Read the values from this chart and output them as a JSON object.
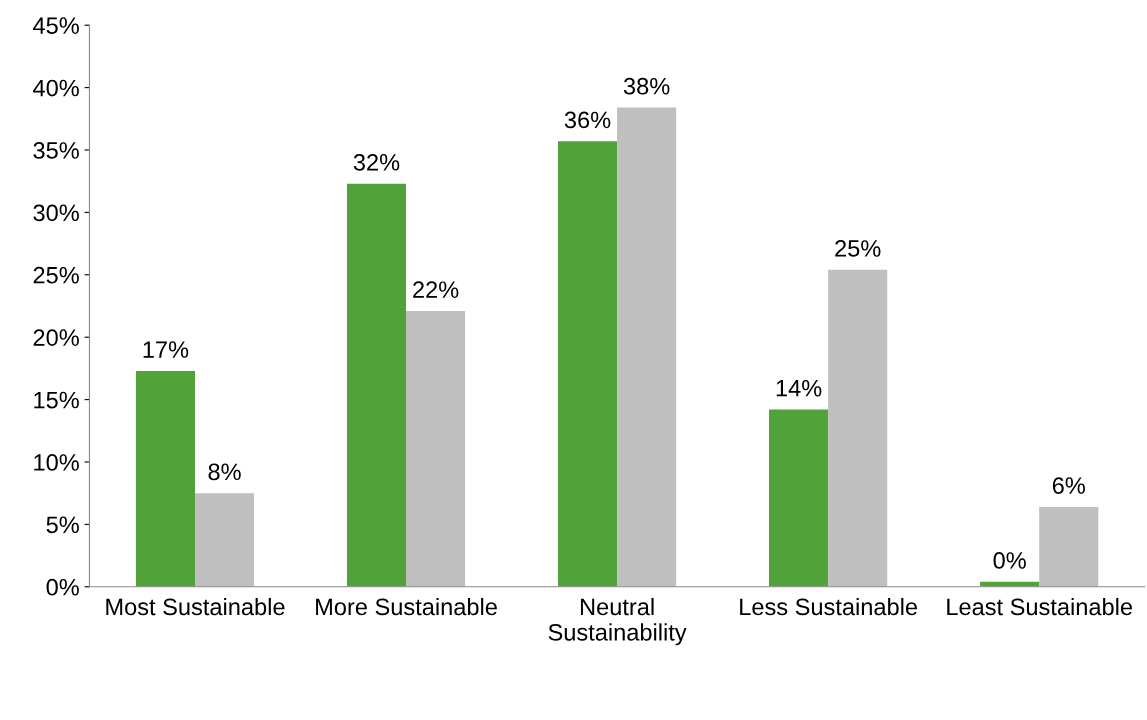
{
  "chart_data": {
    "type": "bar",
    "categories": [
      "Most Sustainable",
      "More Sustainable",
      "Neutral\nSustainability",
      "Less Sustainable",
      "Least Sustainable"
    ],
    "series": [
      {
        "color": "#52a23a",
        "values": [
          17.3,
          32.3,
          35.7,
          14.2,
          0.4
        ],
        "value_labels": [
          "17%",
          "32%",
          "36%",
          "14%",
          "0%"
        ]
      },
      {
        "color": "#bfbfbf",
        "values": [
          7.5,
          22.1,
          38.4,
          25.4,
          6.4
        ],
        "value_labels": [
          "8%",
          "22%",
          "38%",
          "25%",
          "6%"
        ]
      }
    ],
    "ylim": [
      0,
      45
    ],
    "yticks": [
      {
        "value": 0,
        "label": "0%"
      },
      {
        "value": 5,
        "label": "5%"
      },
      {
        "value": 10,
        "label": "10%"
      },
      {
        "value": 15,
        "label": "15%"
      },
      {
        "value": 20,
        "label": "20%"
      },
      {
        "value": 25,
        "label": "25%"
      },
      {
        "value": 30,
        "label": "30%"
      },
      {
        "value": 35,
        "label": "35%"
      },
      {
        "value": 40,
        "label": "40%"
      },
      {
        "value": 45,
        "label": "45%"
      }
    ],
    "grid": false
  }
}
